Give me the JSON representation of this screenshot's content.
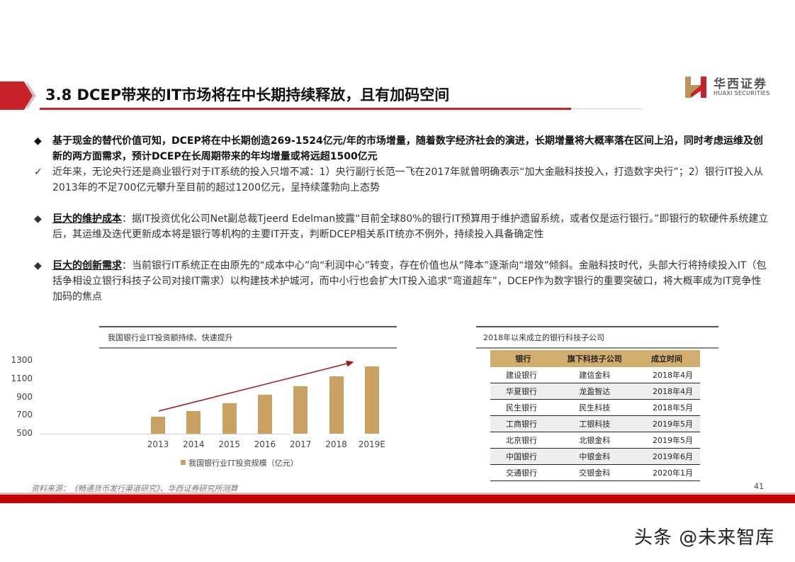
{
  "header": {
    "title": "3.8 DCEP带来的IT市场将在中长期持续释放，且有加码空间",
    "brand_color": "#c8222a",
    "logo": {
      "cn": "华西证券",
      "en": "HUAXI SECURITIES",
      "icon": "huaxi-logo-icon"
    }
  },
  "bullets": [
    {
      "marker": "◆",
      "style": "bold",
      "text": "基于现金的替代价值可知，DCEP将在中长期创造269-1524亿元/年的市场增量，随着数字经济社会的演进，长期增量将大概率落在区间上沿，同时考虑运维及创新的两方面需求，预计DCEP在长周期带来的年均增量或将远超1500亿元"
    },
    {
      "marker": "✓",
      "style": "light",
      "text": "近年来，无论央行还是商业银行对于IT系统的投入只增不减：1）央行副行长范一飞在2017年就曾明确表示“加大金融科技投入，打造数字央行”；2）银行IT投入从2013年的不足700亿元攀升至目前的超过1200亿元，呈持续蓬勃向上态势"
    },
    {
      "marker": "◆",
      "style": "light",
      "heading": "巨大的维护成本",
      "text": "：据IT投资优化公司Net副总裁Tjeerd Edelman披露“目前全球80%的银行IT预算用于维护遗留系统，或者仅是运行银行。”即银行的软硬件系统建立后，其运维及迭代更新成本将是银行等机构的主要IT开支，判断DCEP相关系IT统亦不例外，持续投入具备确定性"
    },
    {
      "marker": "◆",
      "style": "light",
      "heading": "巨大的创新需求",
      "text": "：当前银行IT系统正在由原先的“成本中心”向“利润中心”转变，存在价值也从“降本”逐渐向“增效”倾斜。金融科技时代，头部大行将持续投入IT（包括争相设立银行科技子公司对接IT需求）以构建技术护城河，而中小行也会扩大IT投入追求“弯道超车”，DCEP作为数字银行的重要突破口，将大概率成为IT竞争性加码的焦点"
    }
  ],
  "chart_data": {
    "type": "bar",
    "title": "我国银行业IT投资额持续、快速提升",
    "categories": [
      "2013",
      "2014",
      "2015",
      "2016",
      "2017",
      "2018",
      "2019E"
    ],
    "series": [
      {
        "name": "我国银行业IT投资规模（亿元）",
        "values": [
          686,
          749,
          834,
          927,
          1021,
          1129,
          1238
        ],
        "color": "#c9a263"
      }
    ],
    "xlabel": "",
    "ylabel": "",
    "yticks": [
      "1300",
      "1100",
      "900",
      "700",
      "500"
    ],
    "ylim": [
      500,
      1300
    ],
    "grid": false,
    "legend_position": "bottom",
    "annotations": [
      {
        "type": "arrow",
        "color": "#a01820",
        "from": "2013",
        "to": "2018",
        "direction": "upward trend"
      }
    ]
  },
  "table": {
    "title": "2018年以来成立的银行科技子公司",
    "headers": [
      "银行",
      "旗下科技子公司",
      "成立时间"
    ],
    "header_color": "#d3ad6d",
    "rows": [
      [
        "建设银行",
        "建信金科",
        "2018年4月"
      ],
      [
        "华夏银行",
        "龙盈智达",
        "2018年4月"
      ],
      [
        "民生银行",
        "民生科技",
        "2018年5月"
      ],
      [
        "工商银行",
        "工银科技",
        "2019年5月"
      ],
      [
        "北京银行",
        "北银金科",
        "2019年5月"
      ],
      [
        "中国银行",
        "中银金科",
        "2019年6月"
      ],
      [
        "交通银行",
        "交银金科",
        "2020年1月"
      ]
    ]
  },
  "footer": {
    "source": "资料来源：《畅通货币发行渠道研究》、华西证券研究所测算",
    "page_number": "41",
    "bar_color": "#c00000"
  },
  "watermark": "头条 @未来智库"
}
